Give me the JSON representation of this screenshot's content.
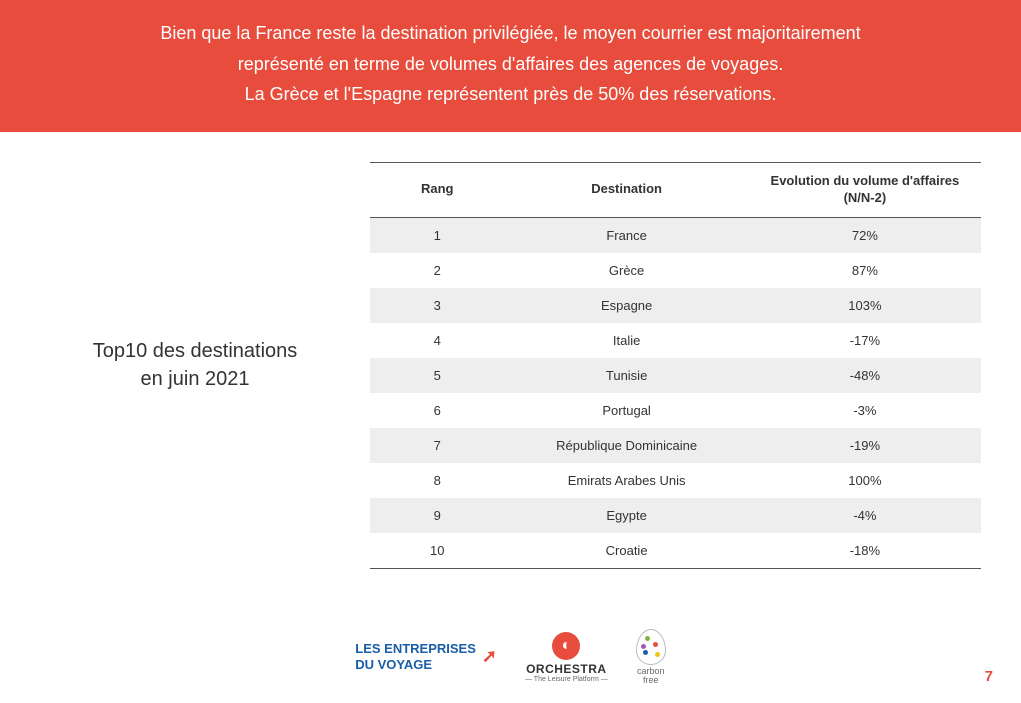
{
  "banner": {
    "line1": "Bien que la France reste la destination privilégiée, le moyen courrier est majoritairement",
    "line2": "représenté en terme de volumes d'affaires des agences de voyages.",
    "line3": "La Grèce et l'Espagne représentent près de 50% des réservations."
  },
  "side_title": {
    "line1": "Top10 des destinations",
    "line2": "en juin 2021"
  },
  "table": {
    "columns": [
      "Rang",
      "Destination",
      "Evolution du volume d'affaires (N/N-2)"
    ],
    "rows": [
      {
        "rank": "1",
        "destination": "France",
        "evolution": "72%"
      },
      {
        "rank": "2",
        "destination": "Grèce",
        "evolution": "87%"
      },
      {
        "rank": "3",
        "destination": "Espagne",
        "evolution": "103%"
      },
      {
        "rank": "4",
        "destination": "Italie",
        "evolution": "-17%"
      },
      {
        "rank": "5",
        "destination": "Tunisie",
        "evolution": "-48%"
      },
      {
        "rank": "6",
        "destination": "Portugal",
        "evolution": "-3%"
      },
      {
        "rank": "7",
        "destination": "République Dominicaine",
        "evolution": "-19%"
      },
      {
        "rank": "8",
        "destination": "Emirats Arabes Unis",
        "evolution": "100%"
      },
      {
        "rank": "9",
        "destination": "Egypte",
        "evolution": "-4%"
      },
      {
        "rank": "10",
        "destination": "Croatie",
        "evolution": "-18%"
      }
    ],
    "header_border_color": "#555555",
    "row_odd_bg": "#eeeeee",
    "row_even_bg": "#ffffff",
    "font_size": 13
  },
  "logos": {
    "edv_line1": "LES ENTREPRISES",
    "edv_line2": "DU VOYAGE",
    "orchestra_name": "ORCHESTRA",
    "orchestra_tag": "— The Leisure Platform —",
    "carbon_line1": "carbon",
    "carbon_line2": "free"
  },
  "page_number": "7",
  "colors": {
    "banner_bg": "#e74c3c",
    "banner_text": "#ffffff",
    "accent": "#e74c3c",
    "edv_blue": "#1a5da8"
  }
}
